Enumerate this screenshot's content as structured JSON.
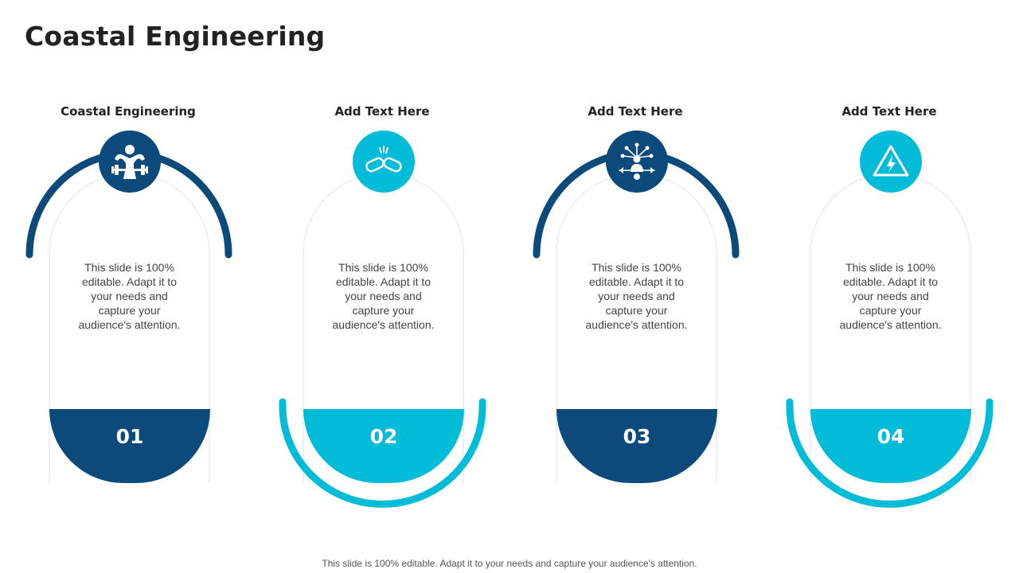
{
  "slide": {
    "title": "Coastal Engineering",
    "footer": "This slide is 100% editable. Adapt it to your needs and capture your audience's attention."
  },
  "colors": {
    "dark_blue": "#0b4a7b",
    "cyan": "#00bcd8",
    "pill_border": "#f0f0f0"
  },
  "cards": [
    {
      "heading": "Coastal Engineering",
      "text": "This slide is 100% editable. Adapt it to your needs and capture your audience's attention.",
      "number": "01",
      "icon": "strongman-dumbbell-icon",
      "color": "dark_blue",
      "arc": "top"
    },
    {
      "heading": "Add Text Here",
      "text": "This slide is 100% editable. Adapt it to your needs and capture your audience's attention.",
      "number": "02",
      "icon": "broken-chain-icon",
      "color": "cyan",
      "arc": "bottom"
    },
    {
      "heading": "Add Text Here",
      "text": "This slide is 100% editable. Adapt it to your needs and capture your audience's attention.",
      "number": "03",
      "icon": "person-network-icon",
      "color": "dark_blue",
      "arc": "top"
    },
    {
      "heading": "Add Text Here",
      "text": "This slide is 100% editable. Adapt it to your needs and capture your audience's attention.",
      "number": "04",
      "icon": "high-voltage-warning-icon",
      "color": "cyan",
      "arc": "bottom"
    }
  ]
}
